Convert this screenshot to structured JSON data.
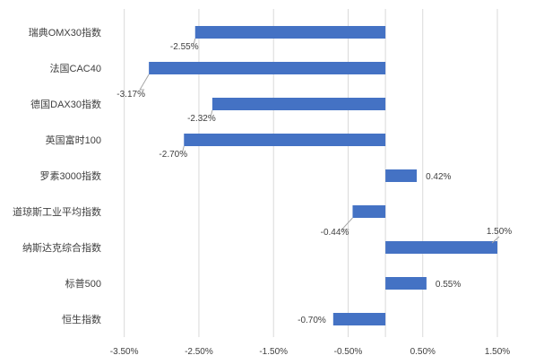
{
  "chart_data": {
    "type": "bar",
    "orientation": "horizontal",
    "title": "",
    "xlabel": "",
    "ylabel": "",
    "xlim": [
      -3.5,
      1.5
    ],
    "x_tick_labels": [
      "-3.50%",
      "-2.50%",
      "-1.50%",
      "-0.50%",
      "0.50%",
      "1.50%"
    ],
    "x_tick_values": [
      -3.5,
      -2.5,
      -1.5,
      -0.5,
      0.5,
      1.5
    ],
    "grid": "vertical",
    "categories": [
      "瑞典OMX30指数",
      "法国CAC40",
      "德国DAX30指数",
      "英国富时100",
      "罗素3000指数",
      "道琼斯工业平均指数",
      "纳斯达克综合指数",
      "标普500",
      "恒生指数"
    ],
    "values": [
      -2.55,
      -3.17,
      -2.32,
      -2.7,
      0.42,
      -0.44,
      1.5,
      0.55,
      -0.7
    ],
    "data_labels": [
      "-2.55%",
      "-3.17%",
      "-2.32%",
      "-2.70%",
      "0.42%",
      "-0.44%",
      "1.50%",
      "0.55%",
      "-0.70%"
    ],
    "bar_color": "#4472C4",
    "gridline_color": "#D9D9D9",
    "text_color": "#404040"
  }
}
